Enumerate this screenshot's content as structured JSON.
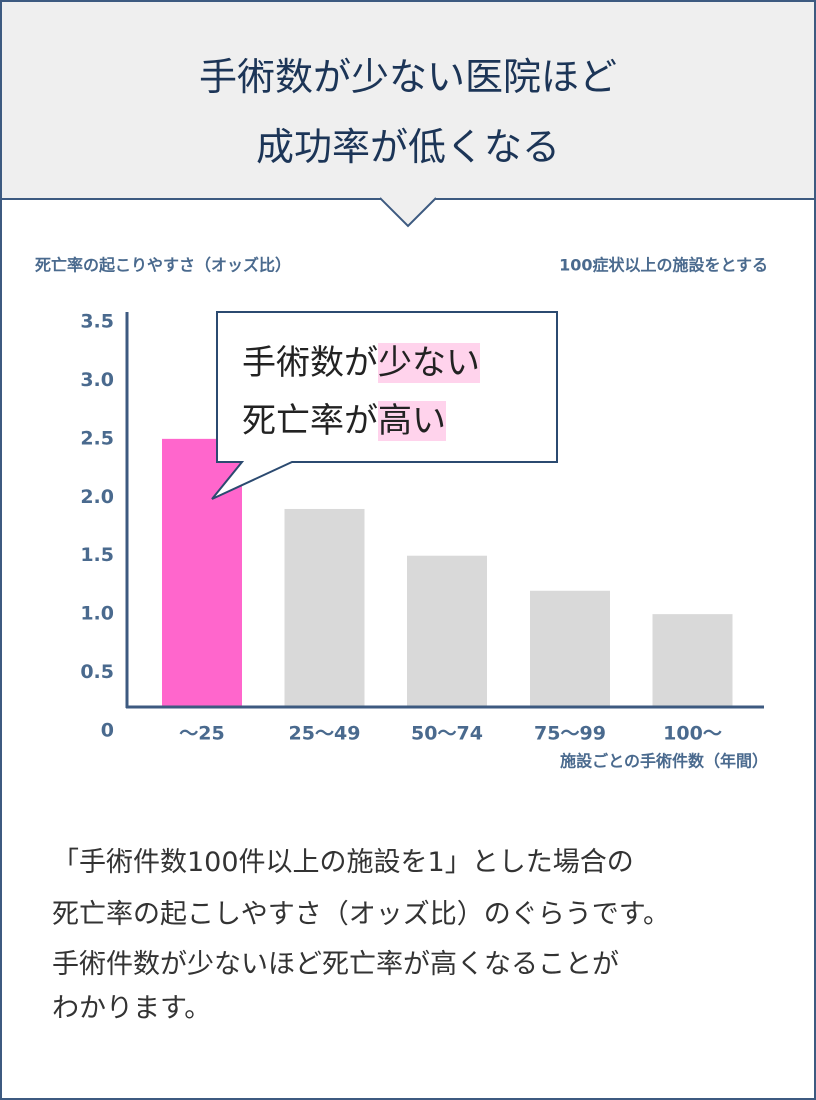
{
  "header": {
    "title": [
      "手術数が少ない医院ほど",
      "成功率が低くなる"
    ]
  },
  "chart_data": {
    "type": "bar",
    "y_label": "死亡率の起こりやすさ（オッズ比）",
    "note": "100症状以上の施設をとする",
    "x_label": "施設ごとの手術件数（年間）",
    "categories": [
      "〜25",
      "25〜49",
      "50〜74",
      "75〜99",
      "100〜"
    ],
    "values": [
      2.5,
      1.9,
      1.5,
      1.2,
      1.0
    ],
    "colors": [
      "#ff66cc",
      "#d9d9d9",
      "#d9d9d9",
      "#d9d9d9",
      "#d9d9d9"
    ],
    "ylim": [
      0,
      3.5
    ],
    "yticks": [
      0,
      0.5,
      {
        "value": 1,
        "label": "1.0"
      },
      1.5,
      {
        "value": 2,
        "label": "2.0"
      },
      2.5,
      {
        "value": 3,
        "label": "3.0"
      },
      3.5
    ],
    "grid": false
  },
  "callout": {
    "lines": [
      {
        "text": "手術数が",
        "highlight": "少ない"
      },
      {
        "text": "死亡率が",
        "highlight": "高い"
      }
    ]
  },
  "description": [
    "「手術件数100件以上の施設を1」とした場合の",
    "死亡率の起こしやすさ（オッズ比）のぐらうです。",
    "手術件数が少ないほど死亡率が高くなることが",
    "わかります。"
  ]
}
